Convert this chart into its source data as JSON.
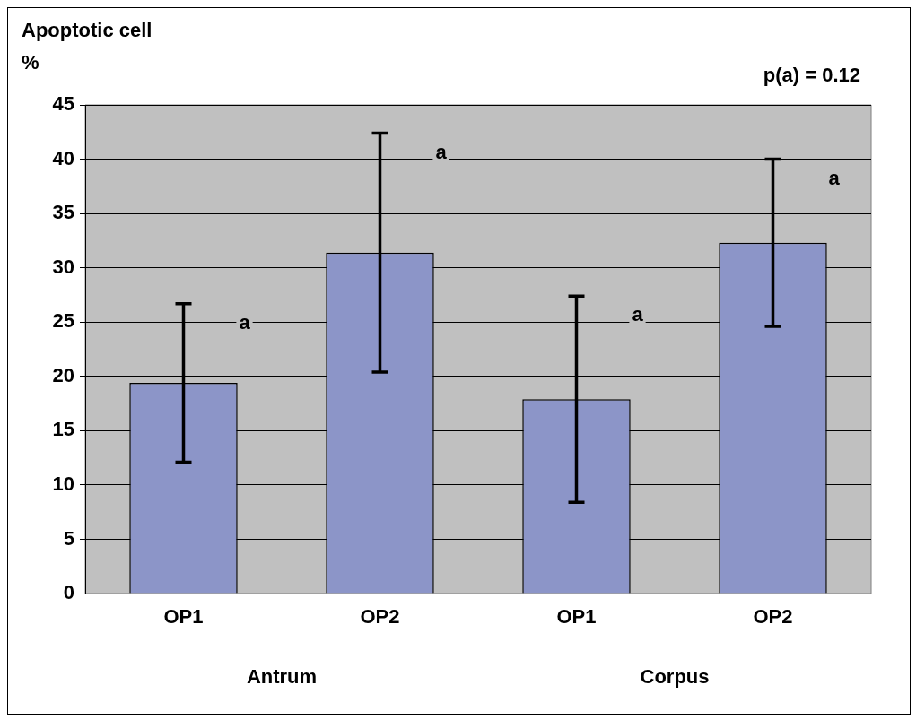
{
  "chart_data": {
    "type": "bar",
    "ylabel": "Apoptotic cell %",
    "categories": [
      "OP1",
      "OP2",
      "OP1",
      "OP2"
    ],
    "values": [
      19.4,
      31.4,
      17.9,
      32.3
    ],
    "errors": [
      7.3,
      11,
      9.5,
      7.7
    ],
    "color": "#8c95c8",
    "ylim": [
      0,
      45
    ],
    "yticks": [
      0,
      5,
      10,
      15,
      20,
      25,
      30,
      35,
      40,
      45
    ],
    "grid": "y",
    "legend": false,
    "annotations": [
      "Antrum",
      "Corpus",
      "p(a) = 0.12",
      "a",
      "a",
      "a",
      "a"
    ]
  }
}
